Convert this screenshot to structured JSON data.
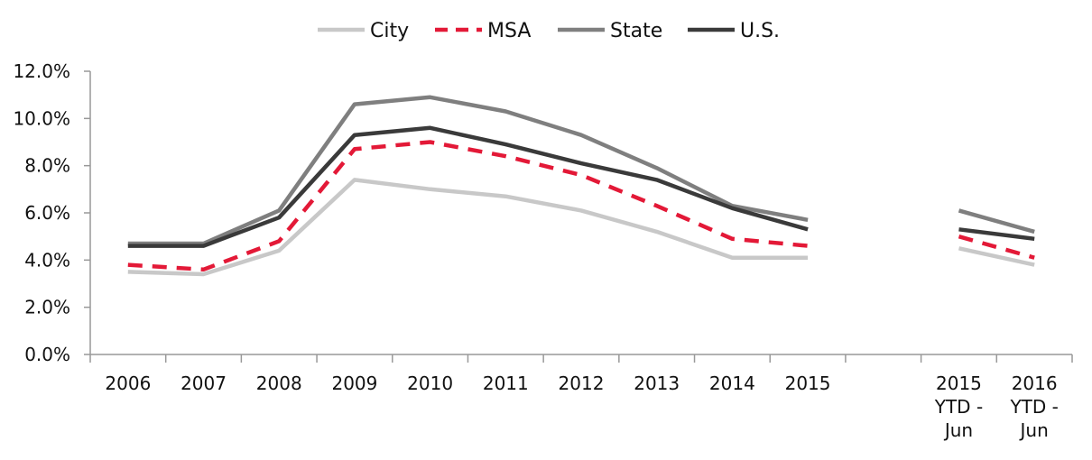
{
  "chart_data": {
    "type": "line",
    "title": "",
    "xlabel": "",
    "ylabel": "",
    "categories": [
      "2006",
      "2007",
      "2008",
      "2009",
      "2010",
      "2011",
      "2012",
      "2013",
      "2014",
      "2015",
      "",
      "2015 YTD - Jun",
      "2016 YTD - Jun"
    ],
    "category_lines": [
      [
        "2006"
      ],
      [
        "2007"
      ],
      [
        "2008"
      ],
      [
        "2009"
      ],
      [
        "2010"
      ],
      [
        "2011"
      ],
      [
        "2012"
      ],
      [
        "2013"
      ],
      [
        "2014"
      ],
      [
        "2015"
      ],
      [],
      [
        "2015",
        "YTD -",
        "Jun"
      ],
      [
        "2016",
        "YTD -",
        "Jun"
      ]
    ],
    "y_ticks": [
      "0.0%",
      "2.0%",
      "4.0%",
      "6.0%",
      "8.0%",
      "10.0%",
      "12.0%"
    ],
    "ylim": [
      0,
      12
    ],
    "grid": false,
    "legend_position": "top-center",
    "series": [
      {
        "name": "City",
        "color": "#c8c8c8",
        "dash": "solid",
        "values": [
          3.5,
          3.4,
          4.4,
          7.4,
          7.0,
          6.7,
          6.1,
          5.2,
          4.1,
          4.1,
          null,
          4.5,
          3.8
        ]
      },
      {
        "name": "MSA",
        "color": "#e31937",
        "dash": "dashed",
        "values": [
          3.8,
          3.6,
          4.8,
          8.7,
          9.0,
          8.4,
          7.6,
          6.3,
          4.9,
          4.6,
          null,
          5.0,
          4.1
        ]
      },
      {
        "name": "State",
        "color": "#7f7f7f",
        "dash": "solid",
        "values": [
          4.7,
          4.7,
          6.1,
          10.6,
          10.9,
          10.3,
          9.3,
          7.9,
          6.3,
          5.7,
          null,
          6.1,
          5.2
        ]
      },
      {
        "name": "U.S.",
        "color": "#3a3a3a",
        "dash": "solid",
        "values": [
          4.6,
          4.6,
          5.8,
          9.3,
          9.6,
          8.9,
          8.1,
          7.4,
          6.2,
          5.3,
          null,
          5.3,
          4.9
        ]
      }
    ]
  }
}
